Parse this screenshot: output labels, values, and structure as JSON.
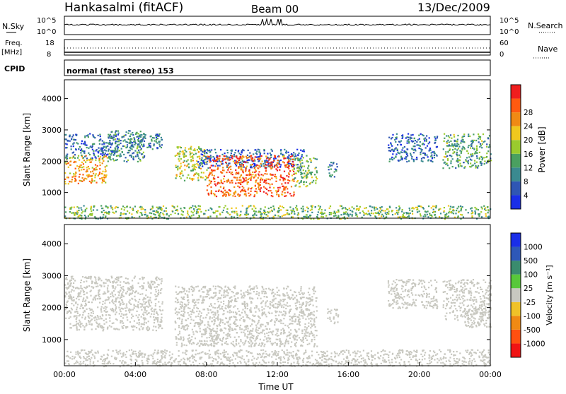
{
  "header": {
    "station": "Hankasalmi (fitACF)",
    "beam": "Beam 00",
    "date": "13/Dec/2009"
  },
  "status_panels": {
    "nsky_label": "N.Sky",
    "nsky_ticks": [
      "10^5",
      "10^0"
    ],
    "nsearch_label": "N.Search",
    "nsearch_ticks": [
      "10^5",
      "10^0"
    ],
    "freq_label": "Freq.",
    "freq_unit": "[MHz]",
    "freq_ticks": [
      "18",
      "8"
    ],
    "nave_label": "Nave",
    "nave_ticks": [
      "60",
      "0"
    ],
    "cpid_label": "CPID",
    "cpid_value": "normal (fast stereo) 153"
  },
  "chart_data": [
    {
      "type": "heatmap",
      "name": "power",
      "ylabel": "Slant Range [km]",
      "ylim": [
        180,
        4600
      ],
      "yticks": [
        "1000",
        "2000",
        "3000",
        "4000"
      ],
      "xlim": [
        0,
        24
      ],
      "colorbar": {
        "label": "Power [dB]",
        "ticks": [
          "4",
          "8",
          "12",
          "16",
          "20",
          "24",
          "28"
        ],
        "colors": [
          "#1a2ee8",
          "#2f56b4",
          "#3a8a90",
          "#4aa060",
          "#9acb2e",
          "#f0c81e",
          "#f08a14",
          "#ff5a10",
          "#f01e1e"
        ],
        "range": [
          0,
          32
        ]
      },
      "regions": [
        {
          "t": [
            0.0,
            2.4
          ],
          "r": [
            1300,
            2200
          ],
          "p": 22
        },
        {
          "t": [
            0.0,
            3.0
          ],
          "r": [
            2100,
            2900
          ],
          "p": 7
        },
        {
          "t": [
            2.4,
            4.5
          ],
          "r": [
            2000,
            3000
          ],
          "p": 10
        },
        {
          "t": [
            3.5,
            5.5
          ],
          "r": [
            2400,
            2900
          ],
          "p": 8
        },
        {
          "t": [
            6.2,
            8.0
          ],
          "r": [
            1400,
            2500
          ],
          "p": 17
        },
        {
          "t": [
            7.5,
            13.5
          ],
          "r": [
            1800,
            2400
          ],
          "p": 5
        },
        {
          "t": [
            8.0,
            12.9
          ],
          "r": [
            900,
            2200
          ],
          "p": 26
        },
        {
          "t": [
            12.9,
            14.2
          ],
          "r": [
            1200,
            2200
          ],
          "p": 14
        },
        {
          "t": [
            14.8,
            15.4
          ],
          "r": [
            1500,
            2000
          ],
          "p": 8
        },
        {
          "t": [
            18.2,
            21.0
          ],
          "r": [
            2000,
            2900
          ],
          "p": 6
        },
        {
          "t": [
            21.3,
            24.0
          ],
          "r": [
            1800,
            2900
          ],
          "p": 12
        },
        {
          "t": [
            0.0,
            24.0
          ],
          "r": [
            180,
            600
          ],
          "p": 14
        }
      ]
    },
    {
      "type": "heatmap",
      "name": "velocity",
      "ylabel": "Slant Range [km]",
      "xlabel": "Time UT",
      "ylim": [
        180,
        4600
      ],
      "yticks": [
        "1000",
        "2000",
        "3000",
        "4000"
      ],
      "xticks": [
        "00:00",
        "04:00",
        "08:00",
        "12:00",
        "16:00",
        "20:00",
        "00:00"
      ],
      "xlim": [
        0,
        24
      ],
      "colorbar": {
        "label": "Velocity [m s⁻¹]",
        "ticks": [
          "1000",
          "500",
          "100",
          "25",
          "-25",
          "-100",
          "-500",
          "-1000"
        ],
        "colors": [
          "#1a2ee8",
          "#2e58b8",
          "#3a8c6e",
          "#58c83a",
          "#c8c8c0",
          "#f0c228",
          "#f08a14",
          "#ff5010",
          "#f01414"
        ],
        "range": [
          1000,
          -1000
        ]
      },
      "regions": [
        {
          "t": [
            0.0,
            5.5
          ],
          "r": [
            1300,
            3000
          ],
          "v": 0
        },
        {
          "t": [
            6.2,
            14.2
          ],
          "r": [
            800,
            2700
          ],
          "v": 0
        },
        {
          "t": [
            14.8,
            15.4
          ],
          "r": [
            1500,
            2000
          ],
          "v": 0
        },
        {
          "t": [
            18.2,
            21.0
          ],
          "r": [
            2000,
            2900
          ],
          "v": 0
        },
        {
          "t": [
            21.3,
            24.0
          ],
          "r": [
            1600,
            2900
          ],
          "v": 0
        },
        {
          "t": [
            0.0,
            24.0
          ],
          "r": [
            180,
            700
          ],
          "v": 60
        },
        {
          "t": [
            22.5,
            24.0
          ],
          "r": [
            1400,
            2000
          ],
          "v": -80
        },
        {
          "t": [
            8.1,
            8.8
          ],
          "r": [
            800,
            1400
          ],
          "v": -70
        }
      ]
    }
  ]
}
